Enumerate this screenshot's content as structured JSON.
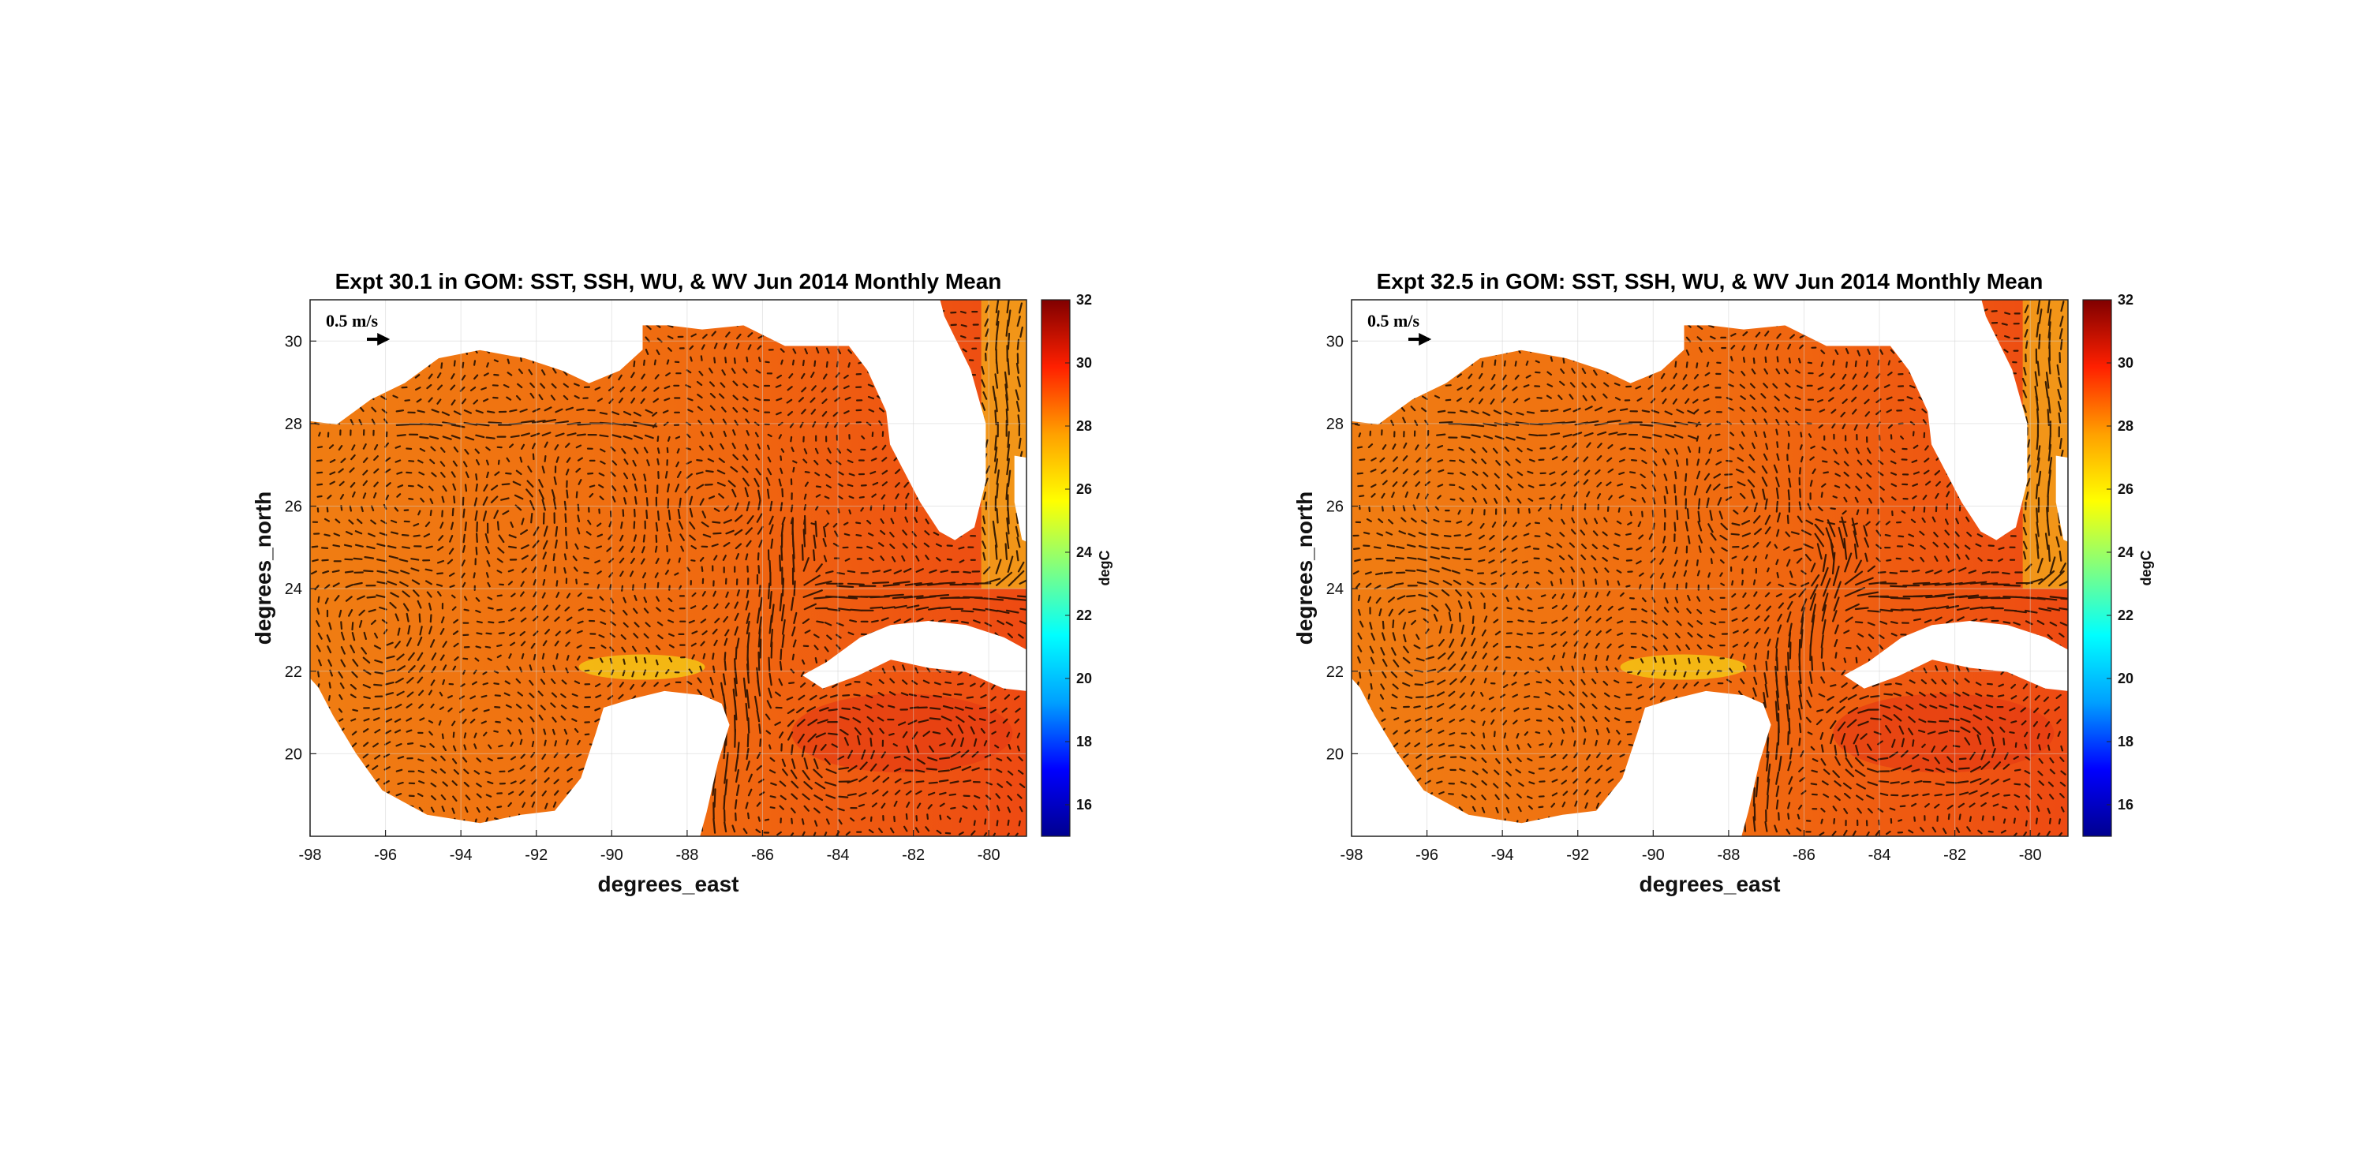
{
  "chart_data": [
    {
      "type": "heatmap",
      "title": "Expt 30.1 in GOM: SST, SSH, WU, & WV Jun 2014 Monthly Mean",
      "xlabel": "degrees_east",
      "ylabel": "degrees_north",
      "xlim": [
        -98,
        -79
      ],
      "ylim": [
        18,
        31
      ],
      "xticks": [
        "-98",
        "-96",
        "-94",
        "-92",
        "-90",
        "-88",
        "-86",
        "-84",
        "-82",
        "-80"
      ],
      "yticks": [
        "30",
        "28",
        "26",
        "24",
        "22",
        "20"
      ],
      "grid": true,
      "colorbar": {
        "label": "degC",
        "range": [
          15,
          32
        ],
        "ticks": [
          "32",
          "30",
          "28",
          "26",
          "24",
          "22",
          "20",
          "18",
          "16"
        ],
        "colormap": [
          "#00008f",
          "#0000ff",
          "#00a0ff",
          "#00ffff",
          "#80ff80",
          "#ffff00",
          "#ffa000",
          "#ff2000",
          "#800000"
        ]
      },
      "reference_vector": "0.5 m/s",
      "field_summary": "SST mostly 27-29 degC with surface current vectors; Loop Current and eddies",
      "eddies": [
        {
          "lon": -96.0,
          "lat": 22.8,
          "rx": 1.3,
          "ry": 1.6
        },
        {
          "lon": -92.5,
          "lat": 25.7,
          "rx": 1.1,
          "ry": 0.9
        },
        {
          "lon": -87.0,
          "lat": 26.0,
          "rx": 1.6,
          "ry": 0.9
        },
        {
          "lon": -84.2,
          "lat": 20.0,
          "rx": 1.0,
          "ry": 0.9
        },
        {
          "lon": -81.3,
          "lat": 20.3,
          "rx": 0.9,
          "ry": 0.8
        }
      ]
    },
    {
      "type": "heatmap",
      "title": "Expt 32.5 in GOM: SST, SSH, WU, & WV Jun 2014 Monthly Mean",
      "xlabel": "degrees_east",
      "ylabel": "degrees_north",
      "xlim": [
        -98,
        -79
      ],
      "ylim": [
        18,
        31
      ],
      "xticks": [
        "-98",
        "-96",
        "-94",
        "-92",
        "-90",
        "-88",
        "-86",
        "-84",
        "-82",
        "-80"
      ],
      "yticks": [
        "30",
        "28",
        "26",
        "24",
        "22",
        "20"
      ],
      "grid": true,
      "colorbar": {
        "label": "degC",
        "range": [
          15,
          32
        ],
        "ticks": [
          "32",
          "30",
          "28",
          "26",
          "24",
          "22",
          "20",
          "18",
          "16"
        ],
        "colormap": [
          "#00008f",
          "#0000ff",
          "#00a0ff",
          "#00ffff",
          "#80ff80",
          "#ffff00",
          "#ffa000",
          "#ff2000",
          "#800000"
        ]
      },
      "reference_vector": "0.5 m/s",
      "field_summary": "SST mostly 27-29 degC with surface current vectors; Loop Current and eddies",
      "eddies": [
        {
          "lon": -96.0,
          "lat": 22.8,
          "rx": 1.3,
          "ry": 1.6
        },
        {
          "lon": -87.7,
          "lat": 26.0,
          "rx": 1.4,
          "ry": 0.9
        },
        {
          "lon": -85.6,
          "lat": 24.6,
          "rx": 0.9,
          "ry": 0.8
        },
        {
          "lon": -84.2,
          "lat": 20.3,
          "rx": 1.0,
          "ry": 0.9
        },
        {
          "lon": -81.8,
          "lat": 20.0,
          "rx": 0.9,
          "ry": 0.8
        }
      ]
    }
  ]
}
